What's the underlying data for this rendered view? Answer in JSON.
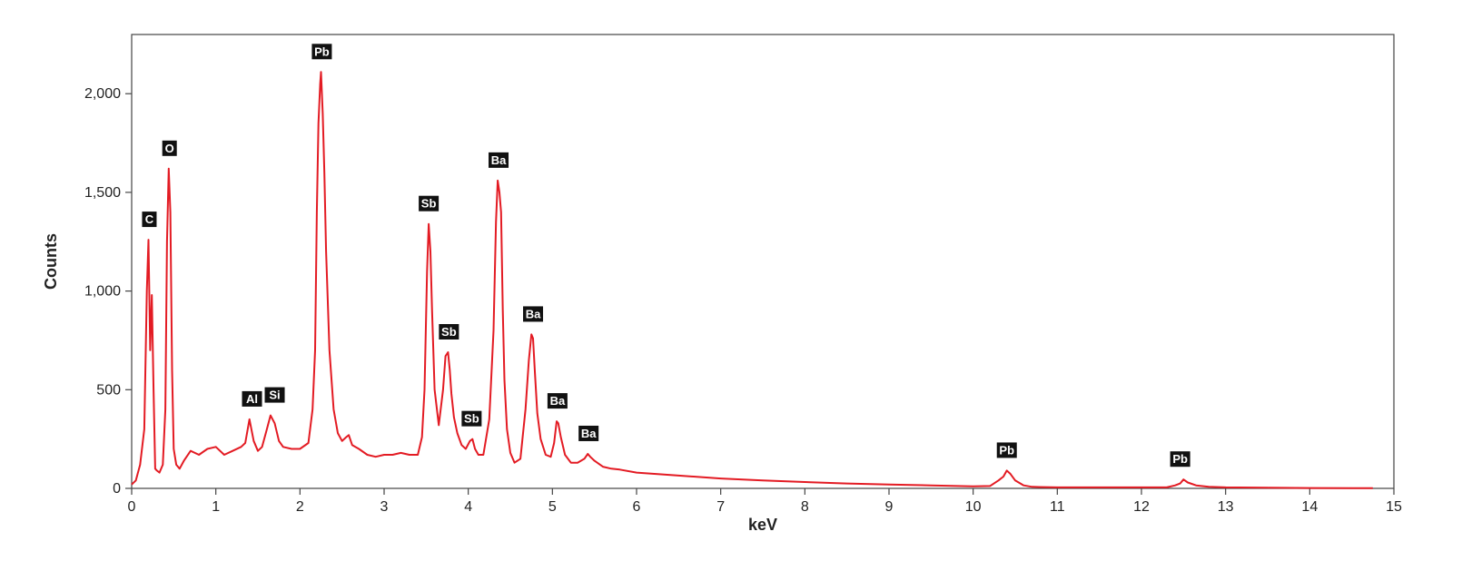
{
  "chart_data": {
    "type": "line",
    "title": "",
    "xlabel": "keV",
    "ylabel": "Counts",
    "xlim": [
      0,
      15
    ],
    "ylim": [
      0,
      2300
    ],
    "grid": false,
    "legend": "none",
    "x_ticks": [
      0,
      1,
      2,
      3,
      4,
      5,
      6,
      7,
      8,
      9,
      10,
      11,
      12,
      13,
      14,
      15
    ],
    "x_tick_labels": [
      "0",
      "1",
      "2",
      "3",
      "4",
      "5",
      "6",
      "7",
      "8",
      "9",
      "10",
      "11",
      "12",
      "13",
      "14",
      "15"
    ],
    "y_ticks": [
      0,
      500,
      1000,
      1500,
      2000
    ],
    "y_tick_labels": [
      "0",
      "500",
      "1,000",
      "1,500",
      "2,000"
    ],
    "series": [
      {
        "color": "#e31b23",
        "x": [
          0.0,
          0.05,
          0.1,
          0.15,
          0.18,
          0.2,
          0.22,
          0.24,
          0.26,
          0.28,
          0.3,
          0.33,
          0.37,
          0.4,
          0.42,
          0.44,
          0.46,
          0.48,
          0.5,
          0.53,
          0.57,
          0.62,
          0.7,
          0.8,
          0.9,
          1.0,
          1.1,
          1.2,
          1.3,
          1.35,
          1.4,
          1.45,
          1.5,
          1.55,
          1.6,
          1.65,
          1.7,
          1.75,
          1.8,
          1.9,
          2.0,
          2.1,
          2.15,
          2.18,
          2.2,
          2.22,
          2.24,
          2.25,
          2.27,
          2.29,
          2.31,
          2.35,
          2.4,
          2.45,
          2.5,
          2.55,
          2.58,
          2.62,
          2.7,
          2.8,
          2.9,
          3.0,
          3.1,
          3.2,
          3.3,
          3.4,
          3.45,
          3.48,
          3.51,
          3.53,
          3.55,
          3.57,
          3.6,
          3.65,
          3.7,
          3.73,
          3.76,
          3.78,
          3.8,
          3.83,
          3.87,
          3.92,
          3.97,
          4.02,
          4.05,
          4.08,
          4.12,
          4.18,
          4.25,
          4.3,
          4.33,
          4.35,
          4.37,
          4.39,
          4.41,
          4.43,
          4.46,
          4.5,
          4.55,
          4.62,
          4.68,
          4.72,
          4.75,
          4.77,
          4.79,
          4.82,
          4.86,
          4.92,
          4.98,
          5.02,
          5.05,
          5.07,
          5.1,
          5.15,
          5.22,
          5.3,
          5.38,
          5.42,
          5.45,
          5.5,
          5.6,
          5.7,
          5.8,
          6.0,
          6.5,
          7.0,
          7.5,
          8.0,
          8.5,
          9.0,
          9.5,
          10.0,
          10.2,
          10.3,
          10.36,
          10.4,
          10.44,
          10.5,
          10.6,
          10.7,
          11.0,
          11.5,
          12.0,
          12.3,
          12.4,
          12.46,
          12.5,
          12.55,
          12.65,
          12.8,
          13.0,
          13.5,
          14.0,
          14.5,
          14.75
        ],
        "y": [
          20,
          40,
          120,
          300,
          1000,
          1260,
          700,
          980,
          500,
          100,
          90,
          80,
          120,
          400,
          1250,
          1620,
          1400,
          600,
          200,
          120,
          100,
          140,
          190,
          170,
          200,
          210,
          170,
          190,
          210,
          230,
          350,
          240,
          190,
          210,
          290,
          370,
          330,
          240,
          210,
          200,
          200,
          230,
          400,
          700,
          1400,
          1850,
          2050,
          2110,
          1900,
          1600,
          1200,
          700,
          400,
          280,
          240,
          260,
          270,
          220,
          200,
          170,
          160,
          170,
          170,
          180,
          170,
          170,
          260,
          500,
          1100,
          1340,
          1200,
          900,
          500,
          320,
          500,
          670,
          690,
          600,
          480,
          360,
          280,
          220,
          200,
          240,
          250,
          200,
          170,
          170,
          350,
          800,
          1350,
          1560,
          1500,
          1400,
          900,
          550,
          300,
          180,
          130,
          150,
          400,
          650,
          780,
          760,
          600,
          380,
          250,
          170,
          160,
          230,
          340,
          330,
          260,
          170,
          130,
          130,
          150,
          175,
          160,
          140,
          110,
          100,
          95,
          80,
          65,
          50,
          40,
          32,
          25,
          20,
          15,
          10,
          12,
          40,
          60,
          90,
          75,
          40,
          15,
          8,
          5,
          5,
          5,
          5,
          15,
          25,
          45,
          30,
          15,
          8,
          5,
          3,
          2,
          1,
          1
        ]
      }
    ],
    "annotations": [
      {
        "text": "C",
        "x": 0.21,
        "y": 1260
      },
      {
        "text": "O",
        "x": 0.45,
        "y": 1620
      },
      {
        "text": "Al",
        "x": 1.43,
        "y": 350
      },
      {
        "text": "Si",
        "x": 1.7,
        "y": 370
      },
      {
        "text": "Pb",
        "x": 2.26,
        "y": 2110
      },
      {
        "text": "Sb",
        "x": 3.53,
        "y": 1340
      },
      {
        "text": "Sb",
        "x": 3.77,
        "y": 690
      },
      {
        "text": "Sb",
        "x": 4.04,
        "y": 250
      },
      {
        "text": "Ba",
        "x": 4.36,
        "y": 1560
      },
      {
        "text": "Ba",
        "x": 4.77,
        "y": 780
      },
      {
        "text": "Ba",
        "x": 5.06,
        "y": 340
      },
      {
        "text": "Ba",
        "x": 5.43,
        "y": 175
      },
      {
        "text": "Pb",
        "x": 10.4,
        "y": 90
      },
      {
        "text": "Pb",
        "x": 12.46,
        "y": 45
      }
    ]
  }
}
